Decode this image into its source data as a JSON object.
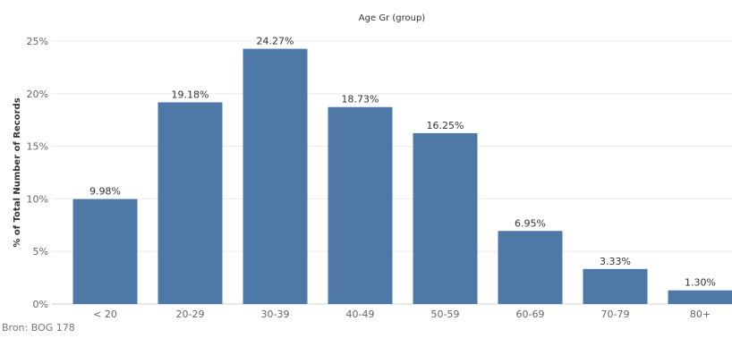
{
  "chart_data": {
    "type": "bar",
    "title": "",
    "xlabel": "Age Gr (group)",
    "ylabel": "% of Total Number of Records",
    "categories": [
      "< 20",
      "20-29",
      "30-39",
      "40-49",
      "50-59",
      "60-69",
      "70-79",
      "80+"
    ],
    "values": [
      9.98,
      19.18,
      24.27,
      18.73,
      16.25,
      6.95,
      3.33,
      1.3
    ],
    "value_labels": [
      "9.98%",
      "19.18%",
      "24.27%",
      "18.73%",
      "16.25%",
      "6.95%",
      "3.33%",
      "1.30%"
    ],
    "y_ticks": [
      0,
      5,
      10,
      15,
      20,
      25
    ],
    "y_tick_labels": [
      "0%",
      "5%",
      "10%",
      "15%",
      "20%",
      "25%"
    ],
    "ylim": [
      0,
      25
    ],
    "grid": true,
    "legend": "none",
    "bar_color": "#4e79a7"
  },
  "source": "Bron: BOG 178"
}
